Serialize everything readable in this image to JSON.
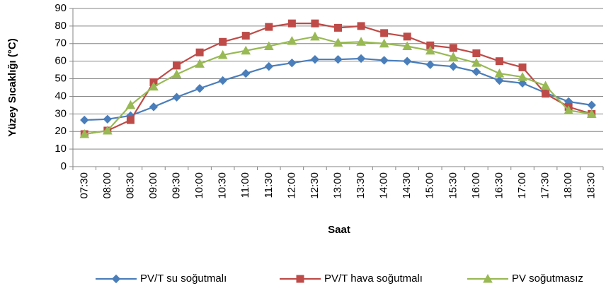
{
  "chart_data": {
    "type": "line",
    "y_label": "Yüzey Sıcaklığı (°C)",
    "x_label": "Saat",
    "categories": [
      "07:30",
      "08:00",
      "08:30",
      "09:00",
      "09:30",
      "10:00",
      "10:30",
      "11:00",
      "11:30",
      "12:00",
      "12:30",
      "13:00",
      "13:30",
      "14:00",
      "14:30",
      "15:00",
      "15:30",
      "16:00",
      "16:30",
      "17:00",
      "17:30",
      "18:00",
      "18:30"
    ],
    "series": [
      {
        "name": "PV/T su soğutmalı",
        "color": "#4a7ebb",
        "marker": "diamond",
        "values": [
          26.5,
          27,
          29,
          34,
          39.5,
          44.5,
          49,
          53,
          57,
          59,
          61,
          61,
          61.5,
          60.5,
          60,
          58,
          57,
          54,
          49,
          47.5,
          42,
          37,
          35
        ]
      },
      {
        "name": "PV/T hava soğutmalı",
        "color": "#be4b48",
        "marker": "square",
        "values": [
          18.5,
          20.5,
          26.5,
          48,
          57.5,
          65,
          71,
          74.5,
          79.5,
          81.5,
          81.5,
          79,
          80,
          76,
          74,
          69,
          67.5,
          64.5,
          60,
          56.5,
          41.5,
          34,
          30
        ]
      },
      {
        "name": "PV soğutmasız",
        "color": "#98b954",
        "marker": "triangle",
        "values": [
          18.5,
          20.5,
          35,
          45.5,
          52.5,
          58.5,
          63.5,
          66,
          68.5,
          71.5,
          74,
          70.5,
          71,
          70,
          68.5,
          66,
          62.5,
          59,
          53,
          51,
          46,
          32,
          30
        ]
      }
    ],
    "ylim": [
      0,
      90
    ],
    "yticks": [
      0,
      10,
      20,
      30,
      40,
      50,
      60,
      70,
      80,
      90
    ],
    "grid": true,
    "legend": "bottom"
  }
}
